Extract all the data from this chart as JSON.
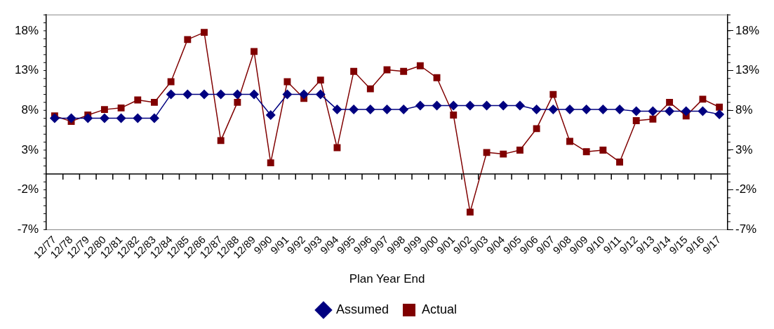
{
  "chart_data": {
    "type": "line",
    "xlabel": "Plan Year End",
    "categories": [
      "12/77",
      "12/78",
      "12/79",
      "12/80",
      "12/81",
      "12/82",
      "12/83",
      "12/84",
      "12/85",
      "12/86",
      "12/87",
      "12/88",
      "12/89",
      "9/90",
      "9/91",
      "9/92",
      "9/93",
      "9/94",
      "9/95",
      "9/96",
      "9/97",
      "9/98",
      "9/99",
      "9/00",
      "9/01",
      "9/02",
      "9/03",
      "9/04",
      "9/05",
      "9/06",
      "9/07",
      "9/08",
      "9/09",
      "9/10",
      "9/11",
      "9/12",
      "9/13",
      "9/14",
      "9/15",
      "9/16",
      "9/17"
    ],
    "series": [
      {
        "name": "Actual",
        "color": "#800000",
        "marker": "square",
        "values": [
          7.3,
          6.6,
          7.4,
          8.1,
          8.3,
          9.3,
          9.0,
          11.6,
          16.9,
          17.8,
          4.2,
          9.0,
          15.4,
          1.4,
          11.6,
          9.5,
          11.8,
          3.3,
          12.9,
          10.7,
          13.1,
          12.9,
          13.6,
          12.1,
          7.4,
          -4.8,
          2.7,
          2.5,
          3.0,
          5.7,
          10.0,
          4.1,
          2.8,
          3.0,
          1.5,
          6.7,
          6.9,
          9.0,
          7.3,
          9.4,
          8.4
        ]
      },
      {
        "name": "Assumed",
        "color": "#000080",
        "marker": "diamond",
        "values": [
          7.0,
          7.0,
          7.0,
          7.0,
          7.0,
          7.0,
          7.0,
          10.0,
          10.0,
          10.0,
          10.0,
          10.0,
          10.0,
          7.4,
          10.0,
          10.0,
          10.0,
          8.1,
          8.1,
          8.1,
          8.1,
          8.1,
          8.6,
          8.6,
          8.6,
          8.6,
          8.6,
          8.6,
          8.6,
          8.1,
          8.1,
          8.1,
          8.1,
          8.1,
          8.1,
          7.9,
          7.9,
          7.9,
          7.9,
          7.9,
          7.5
        ]
      }
    ],
    "ylim": [
      -7,
      20
    ],
    "yticks": [
      {
        "value": -7,
        "label": "-7%"
      },
      {
        "value": -2,
        "label": "-2%"
      },
      {
        "value": 3,
        "label": "3%"
      },
      {
        "value": 8,
        "label": "8%"
      },
      {
        "value": 13,
        "label": "13%"
      },
      {
        "value": 18,
        "label": "18%"
      }
    ],
    "y2lim": [
      -7,
      20
    ],
    "y2ticks": [
      {
        "value": -7,
        "label": "-7%"
      },
      {
        "value": -2,
        "label": "-2%"
      },
      {
        "value": 3,
        "label": "3%"
      },
      {
        "value": 8,
        "label": "8%"
      },
      {
        "value": 13,
        "label": "13%"
      },
      {
        "value": 18,
        "label": "18%"
      }
    ],
    "grid": false,
    "legend": "bottom",
    "line_style": "solid"
  }
}
